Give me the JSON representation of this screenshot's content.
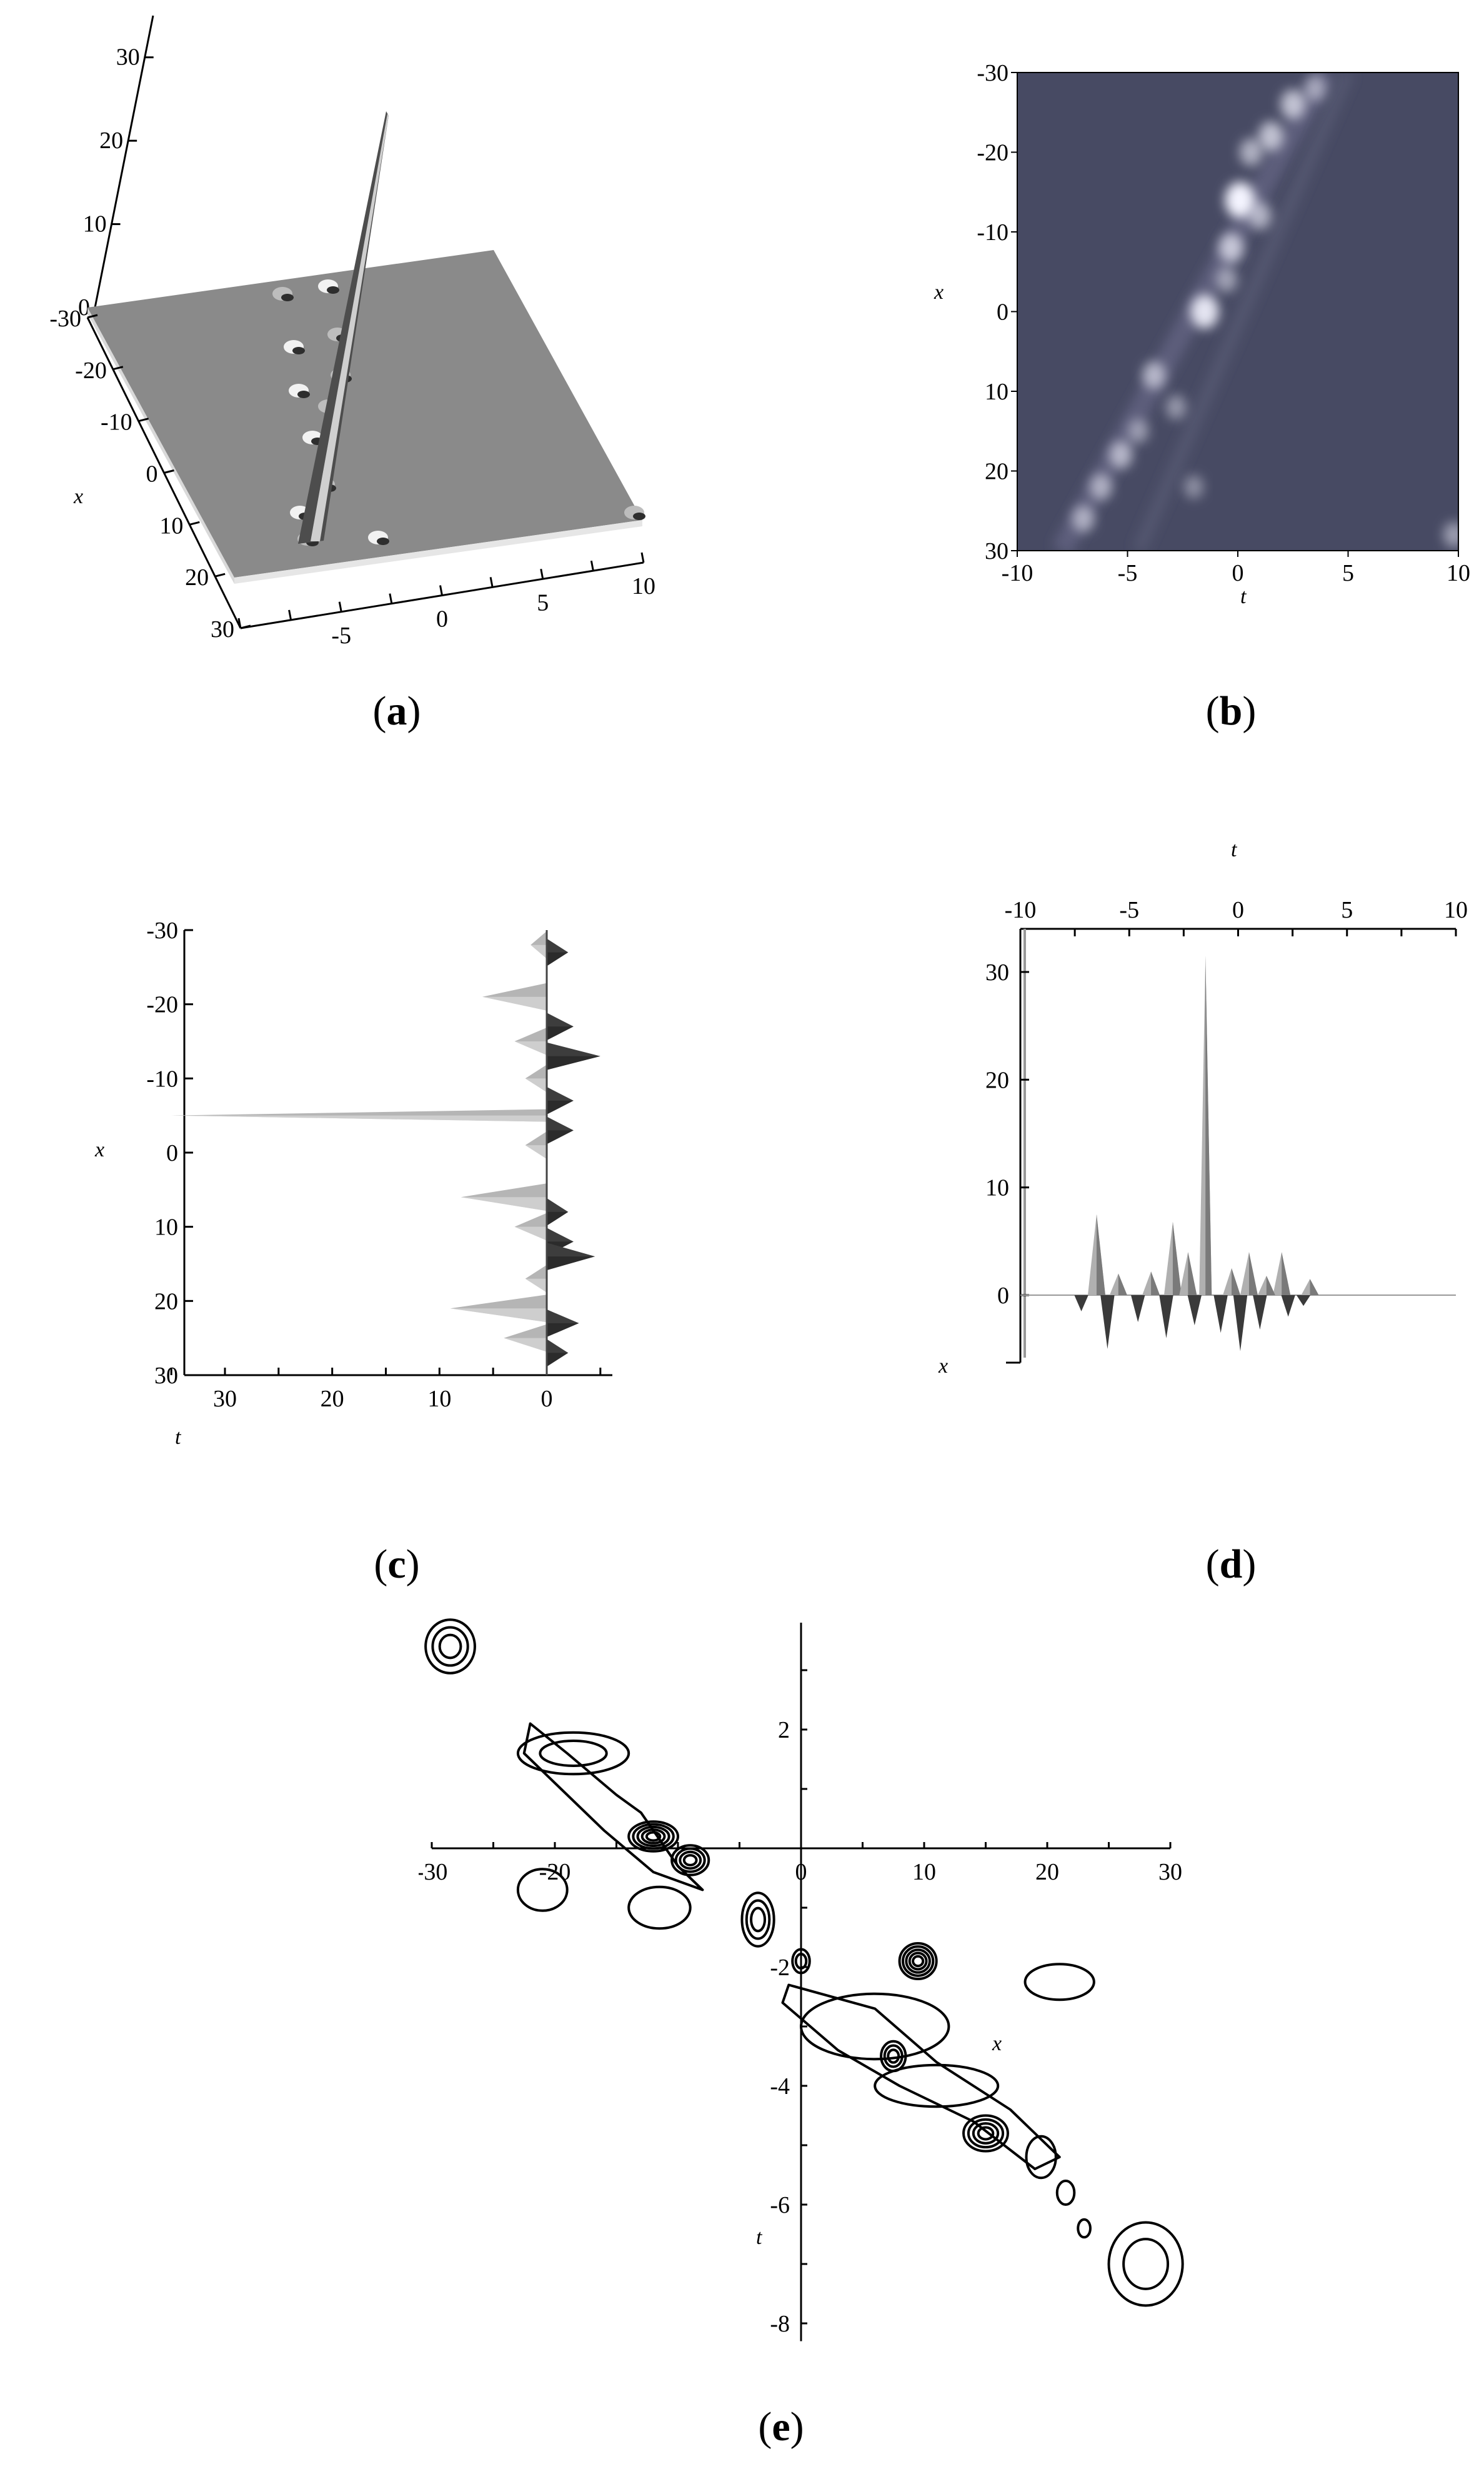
{
  "captions": {
    "a": {
      "open": "(",
      "letter": "a",
      "close": ")"
    },
    "b": {
      "open": "(",
      "letter": "b",
      "close": ")"
    },
    "c": {
      "open": "(",
      "letter": "c",
      "close": ")"
    },
    "d": {
      "open": "(",
      "letter": "d",
      "close": ")"
    },
    "e": {
      "open": "(",
      "letter": "e",
      "close": ")"
    }
  },
  "colors": {
    "surface": "#8a8a8a",
    "density_bg": "#474a63",
    "contour": "#000000"
  },
  "chart_data": [
    {
      "id": "a",
      "type": "surface3d",
      "z_ticks": [
        "30",
        "20",
        "10",
        "0"
      ],
      "x_ticks": [
        "-30",
        "-20",
        "-10",
        "0",
        "10",
        "20",
        "30"
      ],
      "t_ticks": [
        "-5",
        "0",
        "5",
        "10"
      ],
      "xlabel": "x",
      "zlim": [
        0,
        35
      ],
      "xlim": [
        -30,
        30
      ],
      "tlim": [
        -10,
        10
      ]
    },
    {
      "id": "b",
      "type": "heatmap",
      "xlabel": "t",
      "ylabel": "x",
      "xlim": [
        -10,
        10
      ],
      "ylim": [
        -30,
        30
      ],
      "x_ticks": [
        "-10",
        "-5",
        "0",
        "5",
        "10"
      ],
      "y_ticks": [
        "-30",
        "-20",
        "-10",
        "0",
        "10",
        "20",
        "30"
      ],
      "peaks": [
        {
          "t": 0.1,
          "x": -14,
          "v": 1.0
        },
        {
          "t": -1.5,
          "x": 0,
          "v": 0.9
        },
        {
          "t": 1.5,
          "x": -22,
          "v": 0.7
        },
        {
          "t": 2.5,
          "x": -26,
          "v": 0.7
        },
        {
          "t": 0.6,
          "x": -20,
          "v": 0.6
        },
        {
          "t": -0.3,
          "x": -8,
          "v": 0.7
        },
        {
          "t": 1.0,
          "x": -12,
          "v": 0.6
        },
        {
          "t": -3.8,
          "x": 8,
          "v": 0.6
        },
        {
          "t": -5.3,
          "x": 18,
          "v": 0.6
        },
        {
          "t": -6.2,
          "x": 22,
          "v": 0.55
        },
        {
          "t": -7.0,
          "x": 26,
          "v": 0.55
        },
        {
          "t": -2.8,
          "x": 12,
          "v": 0.45
        },
        {
          "t": -2.0,
          "x": 22,
          "v": 0.4
        },
        {
          "t": -0.5,
          "x": -4,
          "v": 0.5
        },
        {
          "t": 3.5,
          "x": -28,
          "v": 0.5
        },
        {
          "t": -4.5,
          "x": 15,
          "v": 0.45
        },
        {
          "t": 9.8,
          "x": 28,
          "v": 0.5
        }
      ]
    },
    {
      "id": "c",
      "type": "side_view",
      "xlabel": "t",
      "ylabel": "x",
      "y_ticks": [
        "-30",
        "-20",
        "-10",
        "0",
        "10",
        "20",
        "30"
      ],
      "x_ticks": [
        "30",
        "20",
        "10",
        "0"
      ],
      "ylim": [
        -30,
        30
      ],
      "xlim": [
        35,
        -5
      ],
      "spikes": [
        {
          "x": -28,
          "h": 1.5,
          "dir": -1
        },
        {
          "x": -27,
          "h": 2.0,
          "dir": 1
        },
        {
          "x": -21,
          "h": 6,
          "dir": -1
        },
        {
          "x": -17,
          "h": 2.5,
          "dir": 1
        },
        {
          "x": -15,
          "h": 3,
          "dir": -1
        },
        {
          "x": -13,
          "h": 5,
          "dir": 1
        },
        {
          "x": -10,
          "h": 2,
          "dir": -1
        },
        {
          "x": -7,
          "h": 2.5,
          "dir": 1
        },
        {
          "x": -5,
          "h": 35,
          "dir": -1
        },
        {
          "x": -3,
          "h": 2.5,
          "dir": 1
        },
        {
          "x": -1,
          "h": 2,
          "dir": -1
        },
        {
          "x": 6,
          "h": 8,
          "dir": -1
        },
        {
          "x": 8,
          "h": 2,
          "dir": 1
        },
        {
          "x": 10,
          "h": 3,
          "dir": -1
        },
        {
          "x": 12,
          "h": 2.5,
          "dir": 1
        },
        {
          "x": 14,
          "h": 4.5,
          "dir": 1
        },
        {
          "x": 17,
          "h": 2,
          "dir": -1
        },
        {
          "x": 21,
          "h": 9,
          "dir": -1
        },
        {
          "x": 23,
          "h": 3,
          "dir": 1
        },
        {
          "x": 25,
          "h": 4,
          "dir": -1
        },
        {
          "x": 27,
          "h": 2,
          "dir": 1
        }
      ]
    },
    {
      "id": "d",
      "type": "side_view",
      "xlabel": "t",
      "zlabel": "x",
      "x_ticks": [
        "-10",
        "-5",
        "0",
        "5",
        "10"
      ],
      "y_ticks": [
        "30",
        "20",
        "10",
        "0"
      ],
      "xlim": [
        -10,
        10
      ],
      "ylim": [
        -6,
        35
      ],
      "spikes": [
        {
          "t": -1.5,
          "z": 31.5
        },
        {
          "t": -6.5,
          "z": 7.5
        },
        {
          "t": -3.0,
          "z": 6.8
        },
        {
          "t": -2.3,
          "z": 4.0
        },
        {
          "t": -5.5,
          "z": 2.0
        },
        {
          "t": -4.0,
          "z": 2.2
        },
        {
          "t": 0.5,
          "z": 4.0
        },
        {
          "t": 2.0,
          "z": 4.0
        },
        {
          "t": -0.3,
          "z": 2.5
        },
        {
          "t": 1.3,
          "z": 1.8
        },
        {
          "t": 3.3,
          "z": 1.5
        },
        {
          "t": -7.2,
          "z": -1.5
        },
        {
          "t": -6.0,
          "z": -5.0
        },
        {
          "t": -4.6,
          "z": -2.5
        },
        {
          "t": -3.3,
          "z": -4.0
        },
        {
          "t": -2.0,
          "z": -2.8
        },
        {
          "t": -0.8,
          "z": -3.5
        },
        {
          "t": 0.1,
          "z": -5.2
        },
        {
          "t": 1.0,
          "z": -3.2
        },
        {
          "t": 2.3,
          "z": -2.0
        },
        {
          "t": 3.0,
          "z": -1.0
        }
      ]
    },
    {
      "id": "e",
      "type": "contour",
      "xlabel": "x",
      "ylabel": "t",
      "xlim": [
        -30,
        30
      ],
      "ylim": [
        -8.3,
        3.8
      ],
      "x_ticks": [
        "-30",
        "-20",
        "0",
        "10",
        "20",
        "30"
      ],
      "x_tick_values": [
        -30,
        -20,
        0,
        10,
        20,
        30
      ],
      "y_ticks": [
        "2",
        "-2",
        "-4",
        "-6",
        "-8"
      ],
      "y_tick_values": [
        2,
        -2,
        -4,
        -6,
        -8
      ],
      "x_hidden_tick_values": [
        -10
      ],
      "centers": [
        {
          "x": -28.5,
          "t": 3.4,
          "rx": 2.0,
          "rt": 0.45,
          "levels": 3
        },
        {
          "x": -18.5,
          "t": 1.6,
          "rx": 4.5,
          "rt": 0.35,
          "levels": 2
        },
        {
          "x": -12,
          "t": 0.2,
          "rx": 2.0,
          "rt": 0.25,
          "levels": 5
        },
        {
          "x": -9,
          "t": -0.2,
          "rx": 1.5,
          "rt": 0.25,
          "levels": 4
        },
        {
          "x": -21,
          "t": -0.7,
          "rx": 2.0,
          "rt": 0.35,
          "levels": 1
        },
        {
          "x": -11.5,
          "t": -1.0,
          "rx": 2.5,
          "rt": 0.35,
          "levels": 1
        },
        {
          "x": -3.5,
          "t": -1.2,
          "rx": 1.3,
          "rt": 0.45,
          "levels": 3
        },
        {
          "x": 0,
          "t": -1.9,
          "rx": 0.7,
          "rt": 0.2,
          "levels": 2
        },
        {
          "x": 9.5,
          "t": -1.9,
          "rx": 1.5,
          "rt": 0.3,
          "levels": 5
        },
        {
          "x": 21,
          "t": -2.25,
          "rx": 2.8,
          "rt": 0.3,
          "levels": 1
        },
        {
          "x": 6,
          "t": -3.0,
          "rx": 6.0,
          "rt": 0.55,
          "levels": 1
        },
        {
          "x": 7.5,
          "t": -3.5,
          "rx": 1.0,
          "rt": 0.25,
          "levels": 3
        },
        {
          "x": 11,
          "t": -4.0,
          "rx": 5.0,
          "rt": 0.35,
          "levels": 1
        },
        {
          "x": 15,
          "t": -4.8,
          "rx": 1.8,
          "rt": 0.3,
          "levels": 4
        },
        {
          "x": 19.5,
          "t": -5.2,
          "rx": 1.2,
          "rt": 0.35,
          "levels": 1
        },
        {
          "x": 21.5,
          "t": -5.8,
          "rx": 0.7,
          "rt": 0.2,
          "levels": 1
        },
        {
          "x": 23,
          "t": -6.4,
          "rx": 0.5,
          "rt": 0.15,
          "levels": 1
        },
        {
          "x": 28,
          "t": -7.0,
          "rx": 3.0,
          "rt": 0.7,
          "levels": 2
        }
      ]
    }
  ]
}
